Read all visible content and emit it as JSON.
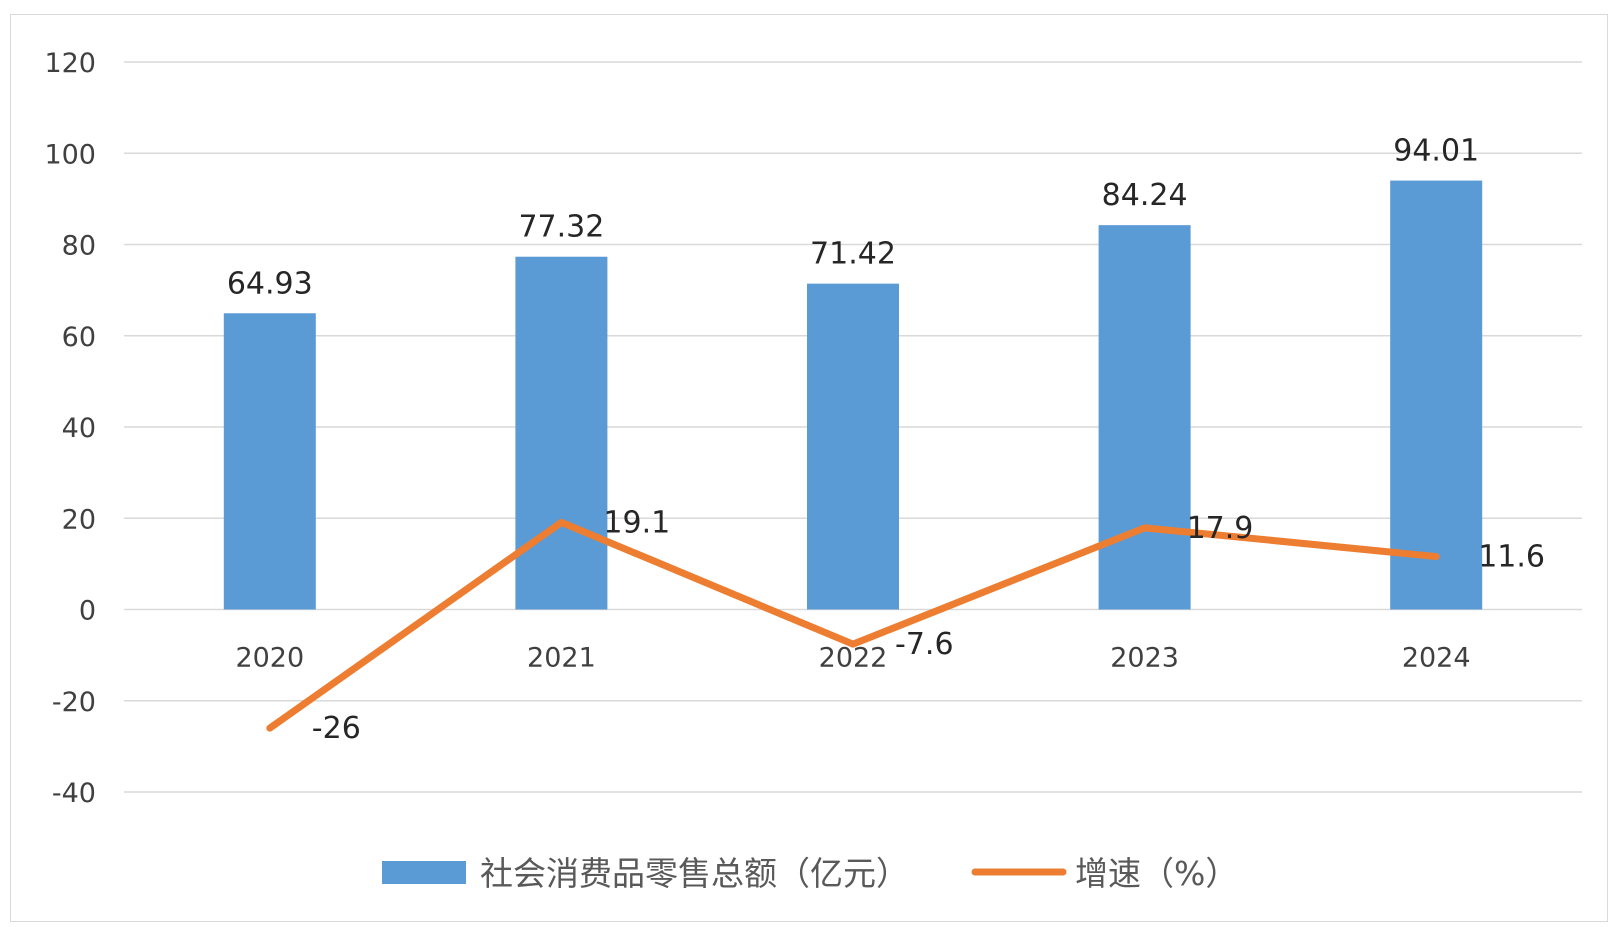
{
  "chart_data": {
    "type": "bar",
    "categories": [
      "2020",
      "2021",
      "2022",
      "2023",
      "2024"
    ],
    "series": [
      {
        "name": "社会消费品零售总额（亿元）",
        "type": "bar",
        "values": [
          64.93,
          77.32,
          71.42,
          84.24,
          94.01
        ],
        "labels": [
          "64.93",
          "77.32",
          "71.42",
          "84.24",
          "94.01"
        ],
        "color": "#5B9BD5"
      },
      {
        "name": "增速（%）",
        "type": "line",
        "values": [
          -26,
          19.1,
          -7.6,
          17.9,
          11.6
        ],
        "labels": [
          "-26",
          "19.1",
          "-7.6",
          "17.9",
          "11.6"
        ],
        "color": "#ED7D31"
      }
    ],
    "y_ticks": [
      "120",
      "100",
      "80",
      "60",
      "40",
      "20",
      "0",
      "-20",
      "-40"
    ],
    "ylim": [
      -40,
      120
    ],
    "grid": true,
    "legend_position": "bottom"
  }
}
